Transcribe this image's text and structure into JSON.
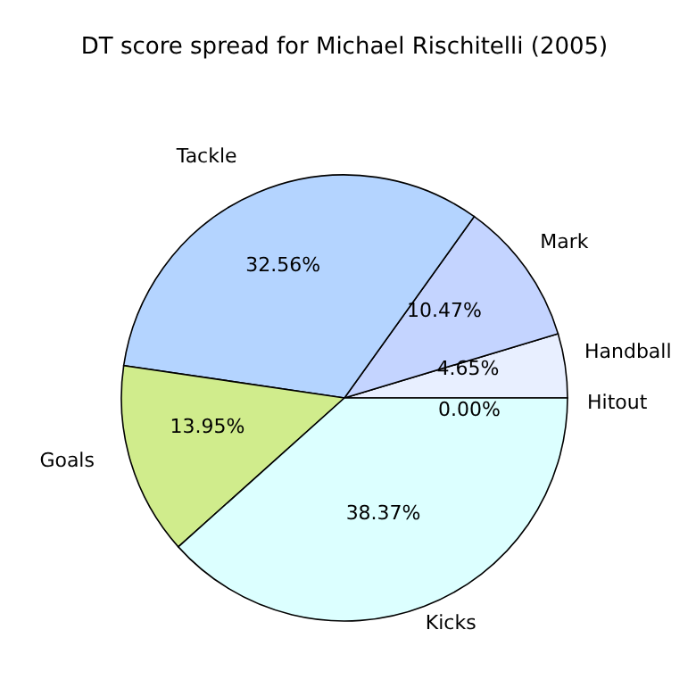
{
  "chart_data": {
    "type": "pie",
    "title": "DT score spread for Michael Rischitelli (2005)",
    "categories": [
      "Hitout",
      "Handball",
      "Mark",
      "Tackle",
      "Goals",
      "Kicks"
    ],
    "values": [
      0,
      4.65,
      10.47,
      32.56,
      13.95,
      38.37
    ],
    "value_labels": [
      "0.00%",
      "4.65%",
      "10.47%",
      "32.56%",
      "13.95%",
      "38.37%"
    ],
    "colors": [
      "#ffffff",
      "#e8efff",
      "#c4d4ff",
      "#b4d4ff",
      "#d0ec8c",
      "#dcffff"
    ]
  }
}
